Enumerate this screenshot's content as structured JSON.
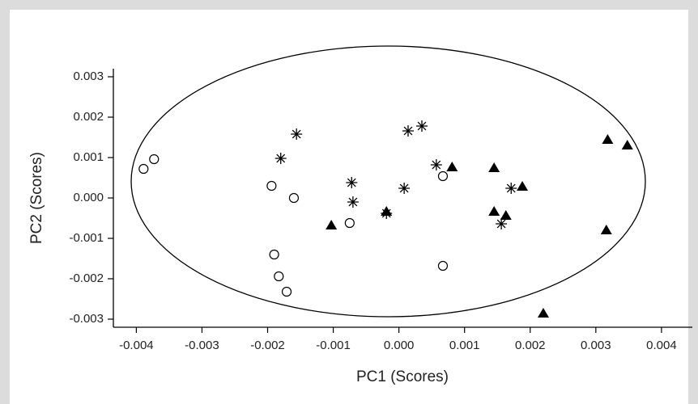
{
  "chart_data": {
    "type": "scatter",
    "xlabel": "PC1 (Scores)",
    "ylabel": "PC2 (Scores)",
    "xlim": [
      -0.00435,
      0.00447
    ],
    "ylim": [
      -0.0032,
      0.0032
    ],
    "xticks": [
      -0.004,
      -0.003,
      -0.002,
      -0.001,
      {
        "value": 0,
        "label": "0.000"
      },
      0.001,
      0.002,
      0.003,
      0.004
    ],
    "yticks": [
      -0.003,
      -0.002,
      -0.001,
      {
        "value": 0,
        "label": "0.000"
      },
      0.001,
      0.002,
      0.003
    ],
    "grid": false,
    "series": [
      {
        "marker": "circle",
        "color": "#000000",
        "x": [
          -0.00389,
          -0.00373,
          -0.00194,
          -0.0016,
          -0.00075,
          -0.0019,
          -0.00183,
          -0.00171,
          0.00067,
          0.00067
        ],
        "values": [
          0.00072,
          0.00096,
          0.0003,
          0.0,
          -0.00062,
          -0.0014,
          -0.00194,
          -0.00232,
          0.00054,
          -0.00168
        ]
      },
      {
        "marker": "star",
        "color": "#000000",
        "x": [
          -0.00156,
          -0.0018,
          -0.00072,
          -0.0007,
          -0.00019,
          8e-05,
          0.00014,
          0.00035,
          0.00057,
          0.00156,
          0.00171
        ],
        "values": [
          0.00158,
          0.00098,
          0.00038,
          -0.0001,
          -0.00038,
          0.00024,
          0.00166,
          0.00178,
          0.00082,
          -0.00064,
          0.00024
        ]
      },
      {
        "marker": "triangle",
        "color": "#000000",
        "x": [
          -0.00103,
          -0.00019,
          0.00081,
          0.00145,
          0.00145,
          0.00163,
          0.00188,
          0.00318,
          0.00348,
          0.00316,
          0.0022
        ],
        "values": [
          -0.00068,
          -0.00034,
          0.00076,
          0.00074,
          -0.00034,
          -0.00044,
          0.00028,
          0.00144,
          0.0013,
          -0.0008,
          -0.00286
        ]
      }
    ]
  }
}
